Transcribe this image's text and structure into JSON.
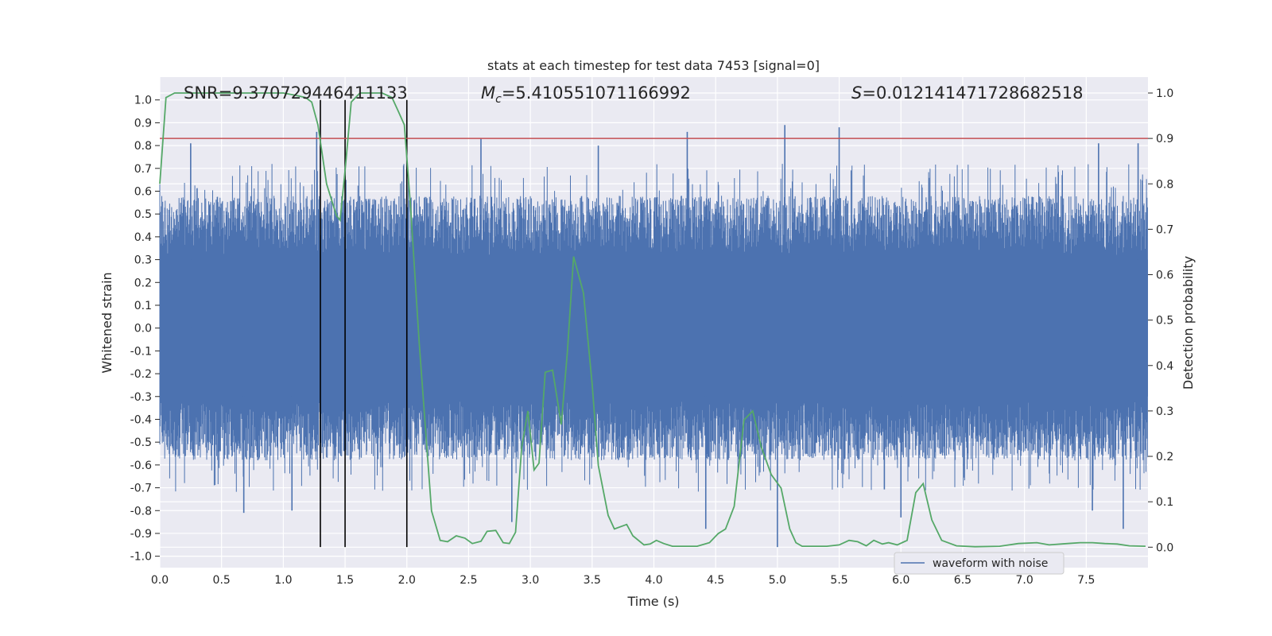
{
  "chart_data": {
    "type": "line",
    "title": "stats at each timestep for test data 7453 [signal=0]",
    "xlabel": "Time (s)",
    "ylabel": "Whitened strain",
    "ylabel_right": "Detection probability",
    "xlim": [
      0,
      8.0
    ],
    "ylim": [
      -1.05,
      1.1
    ],
    "ylim_right": [
      -0.045,
      1.035
    ],
    "x_ticks": [
      0.0,
      0.5,
      1.0,
      1.5,
      2.0,
      2.5,
      3.0,
      3.5,
      4.0,
      4.5,
      5.0,
      5.5,
      6.0,
      6.5,
      7.0,
      7.5
    ],
    "x_tick_labels": [
      "0.0",
      "0.5",
      "1.0",
      "1.5",
      "2.0",
      "2.5",
      "3.0",
      "3.5",
      "4.0",
      "4.5",
      "5.0",
      "5.5",
      "6.0",
      "6.5",
      "7.0",
      "7.5"
    ],
    "y_ticks": [
      -1.0,
      -0.9,
      -0.8,
      -0.7,
      -0.6,
      -0.5,
      -0.4,
      -0.3,
      -0.2,
      -0.1,
      0.0,
      0.1,
      0.2,
      0.3,
      0.4,
      0.5,
      0.6,
      0.7,
      0.8,
      0.9,
      1.0
    ],
    "y_tick_labels": [
      "-1.0",
      "-0.9",
      "-0.8",
      "-0.7",
      "-0.6",
      "-0.5",
      "-0.4",
      "-0.3",
      "-0.2",
      "-0.1",
      "0.0",
      "0.1",
      "0.2",
      "0.3",
      "0.4",
      "0.5",
      "0.6",
      "0.7",
      "0.8",
      "0.9",
      "1.0"
    ],
    "y2_ticks": [
      0.0,
      0.1,
      0.2,
      0.3,
      0.4,
      0.5,
      0.6,
      0.7,
      0.8,
      0.9,
      1.0
    ],
    "y2_tick_labels": [
      "0.0",
      "0.1",
      "0.2",
      "0.3",
      "0.4",
      "0.5",
      "0.6",
      "0.7",
      "0.8",
      "0.9",
      "1.0"
    ],
    "annotations": {
      "snr": "SNR=9.370729446411133",
      "mc_prefix": "M",
      "mc_sub": "c",
      "mc_value": "=5.410551071166992",
      "s_prefix": "S",
      "s_value": "=0.012141471728682518"
    },
    "threshold": {
      "value": 0.9,
      "axis": "right",
      "color": "#c44e52"
    },
    "vertical_markers": [
      1.3,
      1.5,
      2.0
    ],
    "legend": {
      "label": "waveform with noise",
      "location": "lower-right"
    },
    "series": [
      {
        "name": "waveform with noise",
        "axis": "left",
        "color": "#4c72b0",
        "kind": "noise",
        "envelope_upper": 0.6,
        "envelope_lower": -0.6,
        "peaks": [
          {
            "x": 0.25,
            "y": 0.81
          },
          {
            "x": 1.27,
            "y": 0.86
          },
          {
            "x": 2.6,
            "y": 0.83
          },
          {
            "x": 3.55,
            "y": 0.8
          },
          {
            "x": 4.27,
            "y": 0.86
          },
          {
            "x": 5.06,
            "y": 0.89
          },
          {
            "x": 5.5,
            "y": 0.88
          },
          {
            "x": 7.6,
            "y": 0.81
          },
          {
            "x": 7.92,
            "y": 0.81
          },
          {
            "x": 0.68,
            "y": -0.81
          },
          {
            "x": 1.07,
            "y": -0.8
          },
          {
            "x": 2.85,
            "y": -0.85
          },
          {
            "x": 4.42,
            "y": -0.88
          },
          {
            "x": 5.0,
            "y": -0.96
          },
          {
            "x": 6.0,
            "y": -0.83
          },
          {
            "x": 7.55,
            "y": -0.8
          },
          {
            "x": 7.8,
            "y": -0.88
          }
        ]
      },
      {
        "name": "detection probability",
        "axis": "right",
        "color": "#55a868",
        "x": [
          0.0,
          0.05,
          0.12,
          0.2,
          0.4,
          0.6,
          0.8,
          1.0,
          1.1,
          1.18,
          1.23,
          1.28,
          1.35,
          1.43,
          1.46,
          1.5,
          1.55,
          1.62,
          1.7,
          1.8,
          1.88,
          1.93,
          1.98,
          2.03,
          2.1,
          2.2,
          2.27,
          2.33,
          2.4,
          2.47,
          2.53,
          2.6,
          2.65,
          2.72,
          2.78,
          2.83,
          2.88,
          2.93,
          2.98,
          3.03,
          3.07,
          3.12,
          3.18,
          3.25,
          3.3,
          3.35,
          3.43,
          3.5,
          3.55,
          3.63,
          3.68,
          3.78,
          3.83,
          3.92,
          3.97,
          4.02,
          4.08,
          4.15,
          4.25,
          4.35,
          4.45,
          4.52,
          4.58,
          4.65,
          4.73,
          4.8,
          4.87,
          4.95,
          5.03,
          5.1,
          5.15,
          5.2,
          5.3,
          5.4,
          5.5,
          5.58,
          5.65,
          5.72,
          5.78,
          5.85,
          5.9,
          5.97,
          6.05,
          6.12,
          6.18,
          6.25,
          6.33,
          6.45,
          6.6,
          6.8,
          6.95,
          7.1,
          7.2,
          7.35,
          7.45,
          7.55,
          7.65,
          7.75,
          7.85,
          7.98
        ],
        "y": [
          0.8,
          0.99,
          1.0,
          1.0,
          1.0,
          1.0,
          1.0,
          1.0,
          0.995,
          0.99,
          0.98,
          0.93,
          0.8,
          0.73,
          0.72,
          0.83,
          0.98,
          1.0,
          1.0,
          1.0,
          0.99,
          0.96,
          0.93,
          0.75,
          0.45,
          0.08,
          0.015,
          0.012,
          0.025,
          0.02,
          0.008,
          0.013,
          0.035,
          0.037,
          0.01,
          0.008,
          0.033,
          0.22,
          0.3,
          0.17,
          0.185,
          0.385,
          0.39,
          0.27,
          0.43,
          0.64,
          0.56,
          0.36,
          0.18,
          0.07,
          0.04,
          0.05,
          0.025,
          0.005,
          0.007,
          0.015,
          0.008,
          0.002,
          0.002,
          0.002,
          0.01,
          0.03,
          0.04,
          0.09,
          0.28,
          0.3,
          0.22,
          0.16,
          0.13,
          0.04,
          0.01,
          0.002,
          0.002,
          0.002,
          0.005,
          0.015,
          0.012,
          0.003,
          0.015,
          0.007,
          0.01,
          0.005,
          0.015,
          0.12,
          0.14,
          0.06,
          0.015,
          0.003,
          0.001,
          0.002,
          0.008,
          0.01,
          0.005,
          0.008,
          0.01,
          0.01,
          0.008,
          0.007,
          0.003,
          0.002
        ]
      }
    ]
  }
}
